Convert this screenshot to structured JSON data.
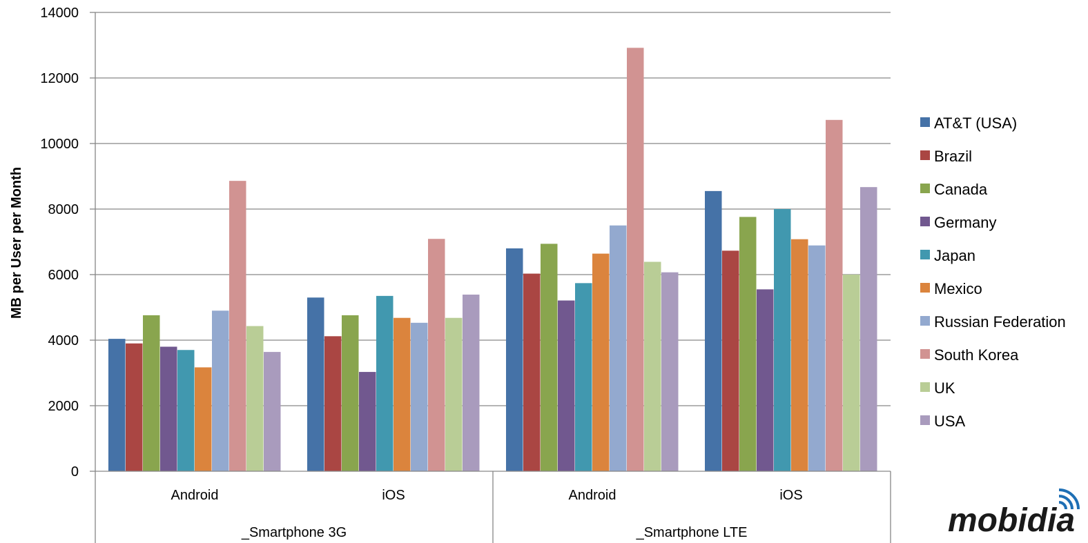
{
  "chart_data": {
    "type": "bar",
    "ylabel": "MB per User per Month",
    "ylim": [
      0,
      14000
    ],
    "yticks": [
      "0",
      "2000",
      "4000",
      "6000",
      "8000",
      "10000",
      "12000",
      "14000"
    ],
    "grid": true,
    "legend_position": "right",
    "groups": [
      {
        "label": "_Smartphone 3G",
        "categories": [
          "Android",
          "iOS"
        ]
      },
      {
        "label": "_Smartphone LTE",
        "categories": [
          "Android",
          "iOS"
        ]
      }
    ],
    "categories": [
      "Android",
      "iOS",
      "Android",
      "iOS"
    ],
    "series": [
      {
        "name": "AT&T (USA)",
        "color": "#4572A7",
        "values": [
          4040,
          5300,
          6800,
          8550
        ]
      },
      {
        "name": "Brazil",
        "color": "#AA4643",
        "values": [
          3900,
          4120,
          6030,
          6730
        ]
      },
      {
        "name": "Canada",
        "color": "#89A54E",
        "values": [
          4760,
          4760,
          6940,
          7760
        ]
      },
      {
        "name": "Germany",
        "color": "#71588F",
        "values": [
          3800,
          3030,
          5210,
          5550
        ]
      },
      {
        "name": "Japan",
        "color": "#4198AF",
        "values": [
          3700,
          5350,
          5740,
          8000
        ]
      },
      {
        "name": "Mexico",
        "color": "#DB843D",
        "values": [
          3170,
          4680,
          6640,
          7080
        ]
      },
      {
        "name": "Russian Federation",
        "color": "#93A9CF",
        "values": [
          4900,
          4530,
          7500,
          6890
        ]
      },
      {
        "name": "South Korea",
        "color": "#D19392",
        "values": [
          8860,
          7090,
          12920,
          10720
        ]
      },
      {
        "name": "UK",
        "color": "#B9CD96",
        "values": [
          4430,
          4680,
          6390,
          6000
        ]
      },
      {
        "name": "USA",
        "color": "#A99BBD",
        "values": [
          3640,
          5390,
          6070,
          8670
        ]
      }
    ]
  },
  "logo": {
    "text": "mobidia"
  }
}
